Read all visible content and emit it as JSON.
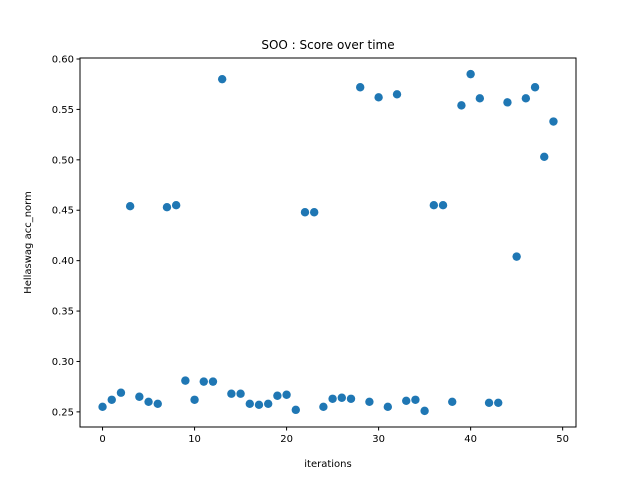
{
  "chart_data": {
    "type": "scatter",
    "title": "SOO : Score over time",
    "xlabel": "iterations",
    "ylabel": "Hellaswag acc_norm",
    "xlim": [
      -2.45,
      51.45
    ],
    "ylim": [
      0.235,
      0.601
    ],
    "xticks": [
      0,
      10,
      20,
      30,
      40,
      50
    ],
    "yticks": [
      0.25,
      0.3,
      0.35,
      0.4,
      0.45,
      0.5,
      0.55,
      0.6
    ],
    "ytick_labels": [
      "0.25",
      "0.30",
      "0.35",
      "0.40",
      "0.45",
      "0.50",
      "0.55",
      "0.60"
    ],
    "marker_color": "#1f77b4",
    "grid": false,
    "legend": "none",
    "x": [
      0,
      1,
      2,
      3,
      4,
      5,
      6,
      7,
      8,
      9,
      10,
      11,
      12,
      13,
      14,
      15,
      16,
      17,
      18,
      19,
      20,
      21,
      22,
      23,
      24,
      25,
      26,
      27,
      28,
      29,
      30,
      31,
      32,
      33,
      34,
      35,
      36,
      37,
      38,
      39,
      40,
      41,
      42,
      43,
      44,
      45,
      46,
      47,
      48,
      49
    ],
    "y": [
      0.255,
      0.262,
      0.269,
      0.454,
      0.265,
      0.26,
      0.258,
      0.453,
      0.455,
      0.281,
      0.262,
      0.28,
      0.28,
      0.58,
      0.268,
      0.268,
      0.258,
      0.257,
      0.258,
      0.266,
      0.267,
      0.252,
      0.448,
      0.448,
      0.255,
      0.263,
      0.264,
      0.263,
      0.572,
      0.26,
      0.562,
      0.255,
      0.565,
      0.261,
      0.262,
      0.251,
      0.455,
      0.455,
      0.26,
      0.554,
      0.585,
      0.561,
      0.259,
      0.259,
      0.557,
      0.404,
      0.561,
      0.572,
      0.503,
      0.538
    ]
  }
}
